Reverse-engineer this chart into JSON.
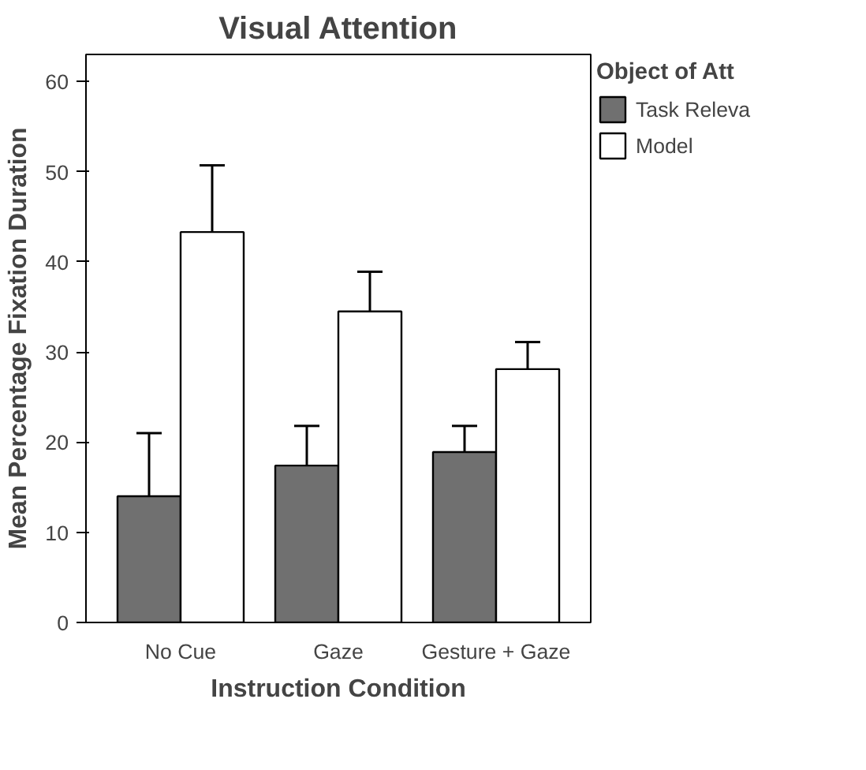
{
  "chart_data": {
    "type": "bar",
    "title": "Visual Attention",
    "xlabel": "Instruction Condition",
    "ylabel": "Mean Percentage Fixation Duration",
    "legend_title": "Object of Att",
    "categories": [
      "No Cue",
      "Gaze",
      "Gesture + Gaze"
    ],
    "series": [
      {
        "name": "Task Releva",
        "color": "#707070",
        "values": [
          14,
          17.4,
          18.9
        ],
        "errors": [
          [
            14,
            21
          ],
          [
            17.4,
            21.8
          ],
          [
            18.9,
            21.8
          ]
        ]
      },
      {
        "name": "Model",
        "color": "#ffffff",
        "values": [
          43.3,
          34.5,
          28.1
        ],
        "errors": [
          [
            43.3,
            50.7
          ],
          [
            34.5,
            38.9
          ],
          [
            28.1,
            31.1
          ]
        ]
      }
    ],
    "ylim": [
      0,
      63
    ],
    "yticks": [
      0,
      10,
      20,
      30,
      40,
      50,
      60
    ],
    "grid": false,
    "legend": "right"
  }
}
